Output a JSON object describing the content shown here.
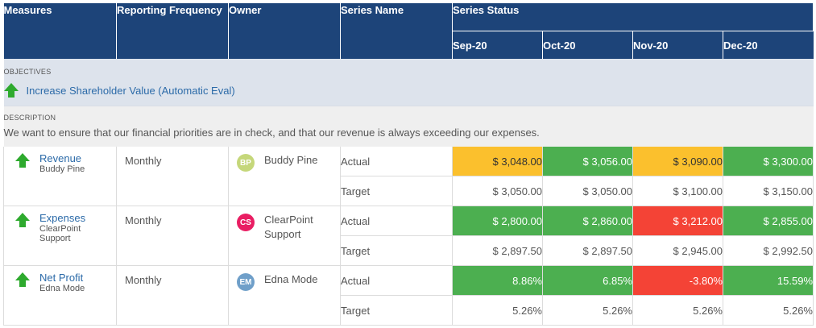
{
  "colors": {
    "header_bg": "#1d4479",
    "green": "#4caf50",
    "amber": "#fbc02d",
    "red": "#f44336",
    "link": "#2b6aa8",
    "arrow_up": "#2eaa2e"
  },
  "header": {
    "measures": "Measures",
    "frequency": "Reporting Frequency",
    "owner": "Owner",
    "series_name": "Series Name",
    "series_status": "Series Status",
    "months": [
      "Sep-20",
      "Oct-20",
      "Nov-20",
      "Dec-20"
    ]
  },
  "objective": {
    "section_label": "OBJECTIVES",
    "icon": "up-arrow-icon",
    "title": "Increase Shareholder Value (Automatic Eval)"
  },
  "description": {
    "section_label": "DESCRIPTION",
    "text": "We want to ensure that our financial priorities are in check, and that our revenue is always exceeding our expenses."
  },
  "measures": [
    {
      "name": "Revenue",
      "owner_line": "Buddy Pine",
      "frequency": "Monthly",
      "owner": {
        "initials": "BP",
        "name": "Buddy Pine",
        "color": "#c5d77a"
      },
      "series": [
        {
          "name": "Actual",
          "values": [
            "$ 3,048.00",
            "$ 3,056.00",
            "$ 3,090.00",
            "$ 3,300.00"
          ],
          "colors": [
            "#fbc02d",
            "#4caf50",
            "#fbc02d",
            "#4caf50"
          ]
        },
        {
          "name": "Target",
          "values": [
            "$ 3,050.00",
            "$ 3,050.00",
            "$ 3,100.00",
            "$ 3,150.00"
          ]
        }
      ]
    },
    {
      "name": "Expenses",
      "owner_line": "ClearPoint Support",
      "frequency": "Monthly",
      "owner": {
        "initials": "CS",
        "name": "ClearPoint Support",
        "color": "#e91e63"
      },
      "series": [
        {
          "name": "Actual",
          "values": [
            "$ 2,800.00",
            "$ 2,860.00",
            "$ 3,212.00",
            "$ 2,855.00"
          ],
          "colors": [
            "#4caf50",
            "#4caf50",
            "#f44336",
            "#4caf50"
          ]
        },
        {
          "name": "Target",
          "values": [
            "$ 2,897.50",
            "$ 2,897.50",
            "$ 2,945.00",
            "$ 2,992.50"
          ]
        }
      ]
    },
    {
      "name": "Net Profit",
      "owner_line": "Edna Mode",
      "frequency": "Monthly",
      "owner": {
        "initials": "EM",
        "name": "Edna Mode",
        "color": "#6f9fc9"
      },
      "series": [
        {
          "name": "Actual",
          "values": [
            "8.86%",
            "6.85%",
            "-3.80%",
            "15.59%"
          ],
          "colors": [
            "#4caf50",
            "#4caf50",
            "#f44336",
            "#4caf50"
          ]
        },
        {
          "name": "Target",
          "values": [
            "5.26%",
            "5.26%",
            "5.26%",
            "5.26%"
          ]
        }
      ]
    }
  ]
}
